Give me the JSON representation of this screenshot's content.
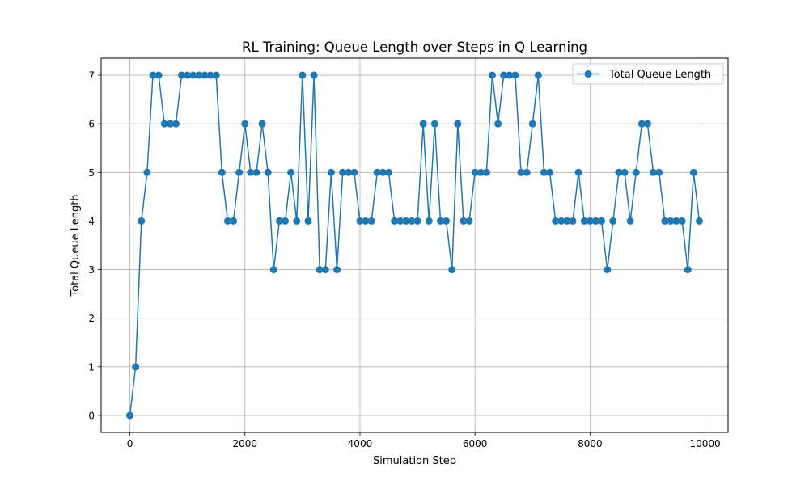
{
  "chart_data": {
    "type": "line",
    "title": "RL Training: Queue Length over Steps in Q Learning",
    "xlabel": "Simulation Step",
    "ylabel": "Total Queue Length",
    "xlim": [
      -500,
      10400
    ],
    "ylim": [
      -0.35,
      7.35
    ],
    "xticks": [
      0,
      2000,
      4000,
      6000,
      8000,
      10000
    ],
    "yticks": [
      0,
      1,
      2,
      3,
      4,
      5,
      6,
      7
    ],
    "grid": true,
    "legend_position": "top-right",
    "colors": {
      "series": "#1f77b4",
      "grid": "#b0b0b0"
    },
    "x": [
      0,
      100,
      200,
      300,
      400,
      500,
      600,
      700,
      800,
      900,
      1000,
      1100,
      1200,
      1300,
      1400,
      1500,
      1600,
      1700,
      1800,
      1900,
      2000,
      2100,
      2200,
      2300,
      2400,
      2500,
      2600,
      2700,
      2800,
      2900,
      3000,
      3100,
      3200,
      3300,
      3400,
      3500,
      3600,
      3700,
      3800,
      3900,
      4000,
      4100,
      4200,
      4300,
      4400,
      4500,
      4600,
      4700,
      4800,
      4900,
      5000,
      5100,
      5200,
      5300,
      5400,
      5500,
      5600,
      5700,
      5800,
      5900,
      6000,
      6100,
      6200,
      6300,
      6400,
      6500,
      6600,
      6700,
      6800,
      6900,
      7000,
      7100,
      7200,
      7300,
      7400,
      7500,
      7600,
      7700,
      7800,
      7900,
      8000,
      8100,
      8200,
      8300,
      8400,
      8500,
      8600,
      8700,
      8800,
      8900,
      9000,
      9100,
      9200,
      9300,
      9400,
      9500,
      9600,
      9700,
      9800,
      9900
    ],
    "series": [
      {
        "name": "Total Queue Length",
        "values": [
          0,
          1,
          4,
          5,
          7,
          7,
          6,
          6,
          6,
          7,
          7,
          7,
          7,
          7,
          7,
          7,
          5,
          4,
          4,
          5,
          6,
          5,
          5,
          6,
          5,
          3,
          4,
          4,
          5,
          4,
          7,
          4,
          7,
          3,
          3,
          5,
          3,
          5,
          5,
          5,
          4,
          4,
          4,
          5,
          5,
          5,
          4,
          4,
          4,
          4,
          4,
          6,
          4,
          6,
          4,
          4,
          3,
          6,
          4,
          4,
          5,
          5,
          5,
          7,
          6,
          7,
          7,
          7,
          5,
          5,
          6,
          7,
          5,
          5,
          4,
          4,
          4,
          4,
          5,
          4,
          4,
          4,
          4,
          3,
          4,
          5,
          5,
          4,
          5,
          6,
          6,
          5,
          5,
          4,
          4,
          4,
          4,
          3,
          5,
          4
        ]
      }
    ]
  }
}
